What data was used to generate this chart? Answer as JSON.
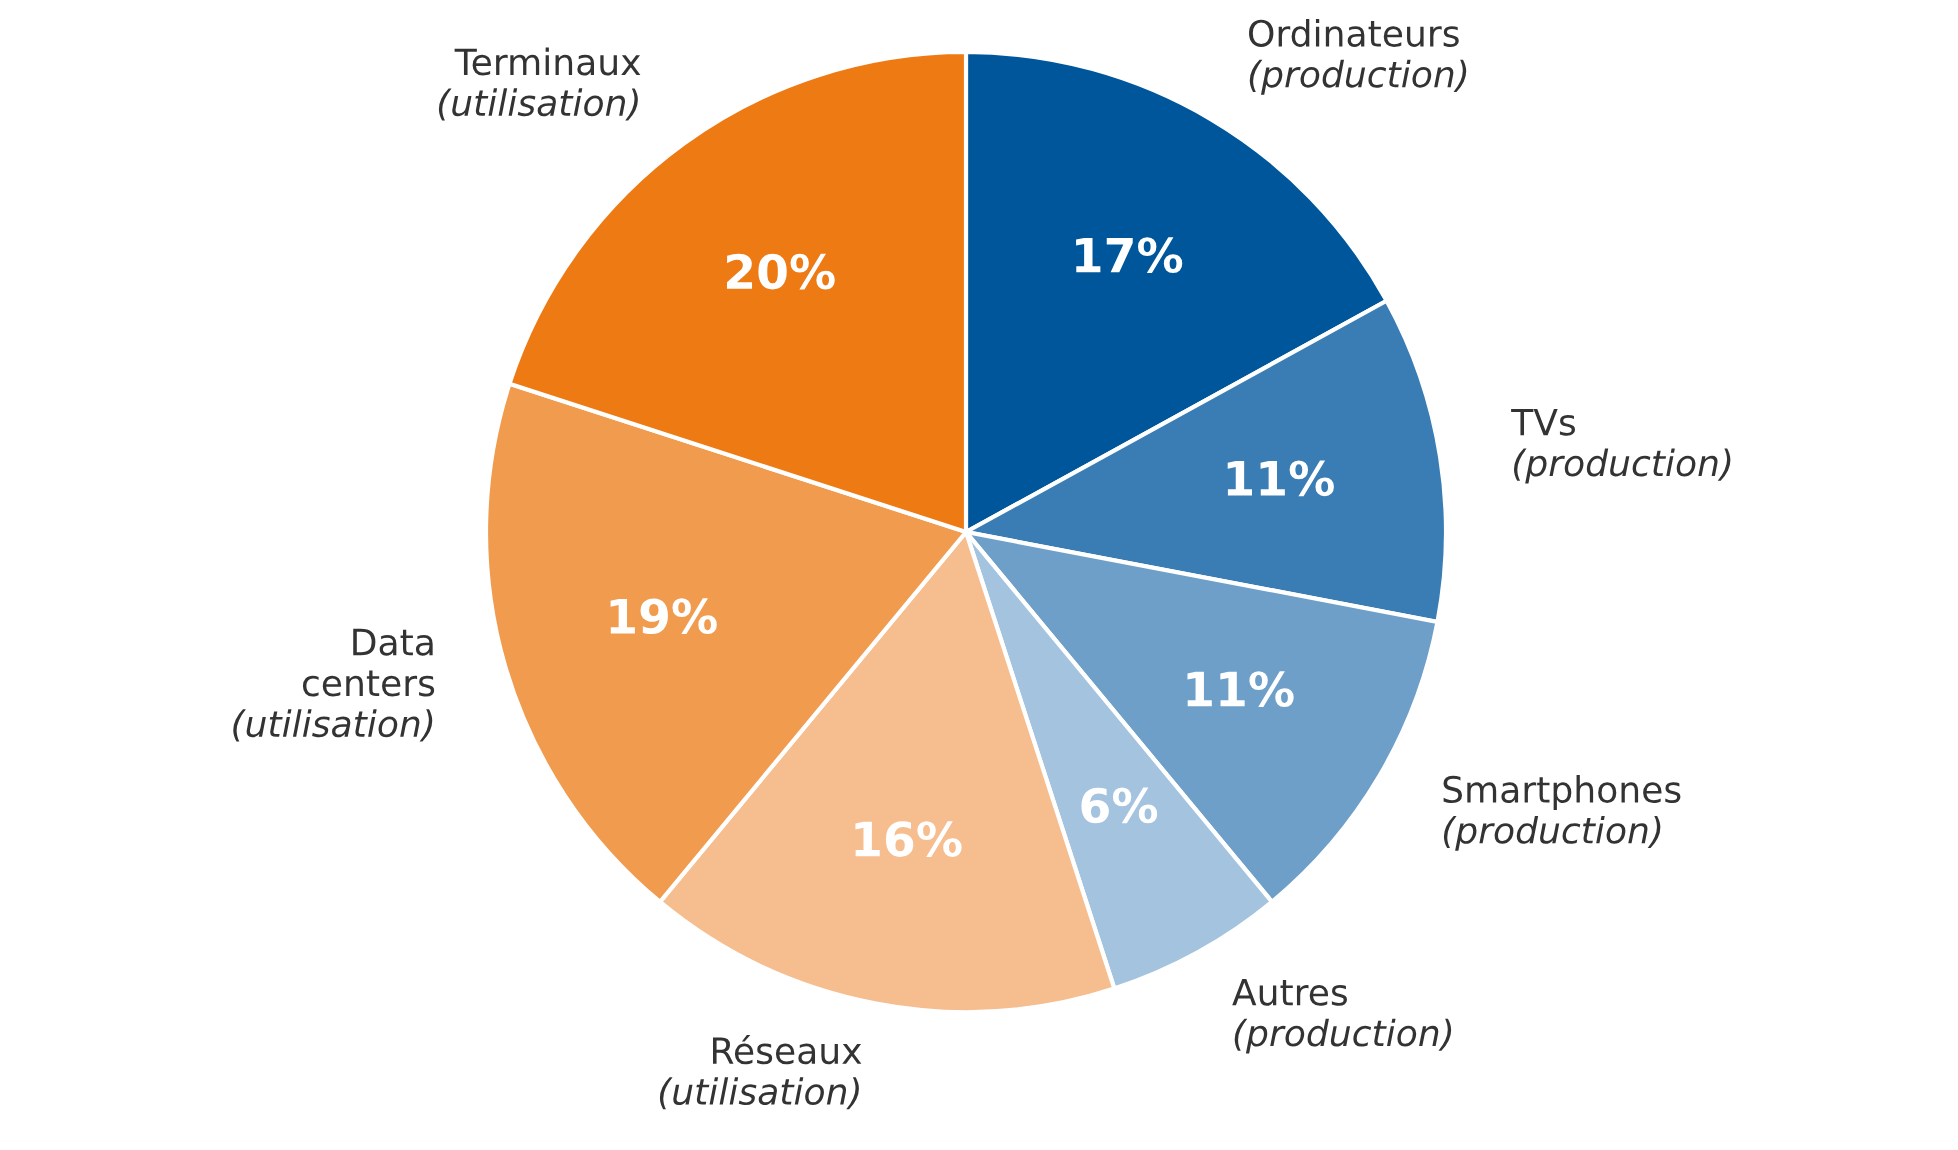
{
  "chart_data": {
    "type": "pie",
    "categories": [
      "Ordinateurs\n(production)",
      "TVs\n(production)",
      "Smartphones\n(production)",
      "Autres\n(production)",
      "Réseaux\n(utilisation)",
      "Data\ncenters\n(utilisation)",
      "Terminaux\n(utilisation)"
    ],
    "values": [
      17,
      11,
      11,
      6,
      16,
      19,
      20
    ],
    "value_labels": [
      "17%",
      "11%",
      "11%",
      "6%",
      "16%",
      "19%",
      "20%"
    ],
    "colors": [
      "#00569a",
      "#3a7db5",
      "#6e9fc8",
      "#a3c3df",
      "#f6bd8f",
      "#f19b4e",
      "#ee7a14"
    ]
  }
}
